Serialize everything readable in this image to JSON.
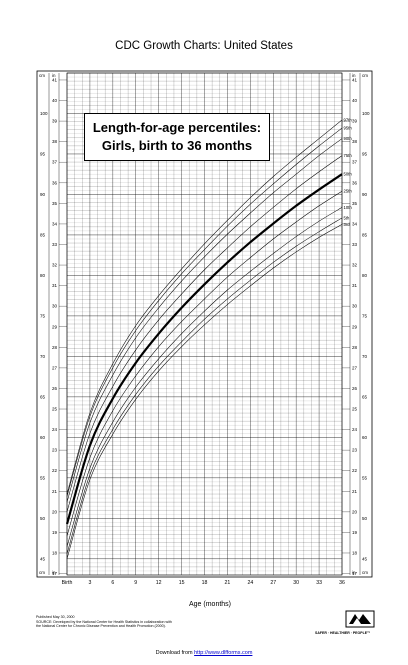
{
  "header": {
    "title": "CDC Growth Charts: United States"
  },
  "chart_data": {
    "type": "line",
    "title": "Length-for-age percentiles:",
    "subtitle": "Girls, birth to 36 months",
    "xlabel": "Age (months)",
    "xlim": [
      0,
      36
    ],
    "x_tick_labels": [
      "Birth",
      "3",
      "6",
      "9",
      "12",
      "15",
      "18",
      "21",
      "24",
      "27",
      "30",
      "33",
      "36"
    ],
    "y_cm_ticks": [
      43,
      44,
      45,
      46,
      47,
      48,
      49,
      50,
      51,
      52,
      53,
      54,
      55,
      56,
      57,
      58,
      59,
      60,
      61,
      62,
      63,
      64,
      65,
      66,
      67,
      68,
      69,
      70,
      71,
      72,
      73,
      74,
      75,
      76,
      77,
      78,
      79,
      80,
      81,
      82,
      83,
      84,
      85,
      86,
      87,
      88,
      89,
      90,
      91,
      92,
      93,
      94,
      95,
      96,
      97,
      98,
      99,
      100,
      101,
      102,
      103,
      104
    ],
    "y_in_ticks": [
      17,
      18,
      19,
      20,
      21,
      22,
      23,
      24,
      25,
      26,
      27,
      28,
      29,
      30,
      31,
      32,
      33,
      34,
      35,
      36,
      37,
      38,
      39,
      40,
      41
    ],
    "y_in_labels": [
      "in",
      "in"
    ],
    "y_cm_labels": [
      "cm",
      "cm"
    ],
    "ylim_cm": [
      43,
      105
    ],
    "grid": true,
    "x": [
      0,
      3,
      6,
      9,
      12,
      15,
      18,
      21,
      24,
      27,
      30,
      33,
      36
    ],
    "series": [
      {
        "name": "97th",
        "values": [
          53.0,
          63.0,
          69.1,
          73.8,
          77.5,
          80.8,
          83.9,
          86.8,
          89.6,
          92.2,
          94.6,
          96.9,
          99.2
        ]
      },
      {
        "name": "95th",
        "values": [
          52.7,
          62.6,
          68.6,
          73.2,
          76.9,
          80.2,
          83.2,
          86.1,
          88.8,
          91.3,
          93.7,
          96.0,
          98.2
        ]
      },
      {
        "name": "90th",
        "values": [
          52.0,
          61.8,
          67.7,
          72.3,
          76.0,
          79.3,
          82.3,
          85.1,
          87.7,
          90.2,
          92.5,
          94.8,
          96.9
        ]
      },
      {
        "name": "75th",
        "values": [
          50.8,
          60.5,
          66.3,
          70.8,
          74.5,
          77.7,
          80.7,
          83.4,
          86.0,
          88.4,
          90.7,
          92.8,
          94.8
        ]
      },
      {
        "name": "50th",
        "values": [
          49.3,
          59.0,
          64.8,
          69.2,
          72.8,
          76.0,
          78.9,
          81.6,
          84.1,
          86.4,
          88.6,
          90.6,
          92.5
        ]
      },
      {
        "name": "25th",
        "values": [
          47.8,
          57.5,
          63.3,
          67.6,
          71.2,
          74.3,
          77.1,
          79.8,
          82.2,
          84.5,
          86.6,
          88.6,
          90.4
        ]
      },
      {
        "name": "10th",
        "values": [
          46.5,
          56.2,
          61.9,
          66.2,
          69.7,
          72.8,
          75.6,
          78.2,
          80.5,
          82.7,
          84.8,
          86.7,
          88.4
        ]
      },
      {
        "name": "5th",
        "values": [
          45.6,
          55.4,
          61.0,
          65.3,
          68.8,
          71.8,
          74.6,
          77.1,
          79.4,
          81.6,
          83.6,
          85.4,
          87.1
        ]
      },
      {
        "name": "3rd",
        "values": [
          45.0,
          54.8,
          60.4,
          64.7,
          68.2,
          71.2,
          73.9,
          76.4,
          78.7,
          80.9,
          82.9,
          84.7,
          86.3
        ]
      }
    ]
  },
  "notes": {
    "published": "Published May 30, 2000",
    "source_1": "SOURCE: Developed by the National Center for Health Statistics in collaboration with",
    "source_2": "the National Center for Chronic Disease Prevention and Health Promotion (2000)."
  },
  "logo": {
    "text": "SAFER · HEALTHIER · PEOPLE™"
  },
  "footer": {
    "downloaded": "Download from",
    "link": "http://www.dlfforms.com"
  }
}
